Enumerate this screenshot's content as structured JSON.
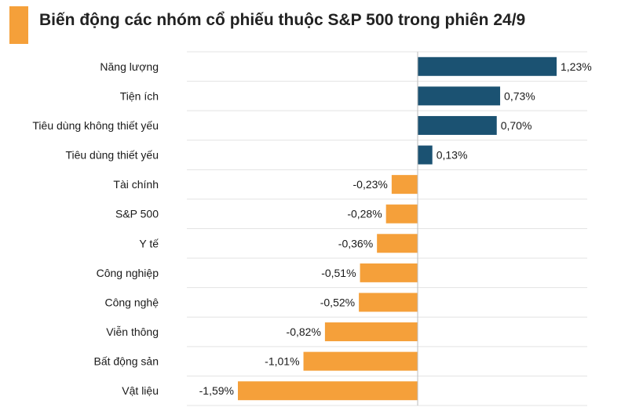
{
  "header": {
    "title": "Biến động các nhóm cổ phiếu thuộc S&P 500 trong phiên 24/9"
  },
  "colors": {
    "accent": "#F5A03A",
    "positive": "#1B5272",
    "negative": "#F5A03A",
    "grid": "#E3E3E3",
    "zero_axis": "#BDBDBD"
  },
  "chart_data": {
    "type": "bar",
    "orientation": "horizontal",
    "title": "Biến động các nhóm cổ phiếu thuộc S&P 500 trong phiên 24/9",
    "xlabel": "",
    "ylabel": "",
    "unit": "%",
    "grid": true,
    "categories": [
      "Năng lượng",
      "Tiện ích",
      "Tiêu dùng không thiết yếu",
      "Tiêu dùng thiết yếu",
      "Tài chính",
      "S&P 500",
      "Y tế",
      "Công nghiệp",
      "Công nghệ",
      "Viễn thông",
      "Bất động sản",
      "Vật liệu"
    ],
    "values": [
      1.23,
      0.73,
      0.7,
      0.13,
      -0.23,
      -0.28,
      -0.36,
      -0.51,
      -0.52,
      -0.82,
      -1.01,
      -1.59
    ],
    "value_labels": [
      "1,23%",
      "0,73%",
      "0,70%",
      "0,13%",
      "-0,23%",
      "-0,28%",
      "-0,36%",
      "-0,51%",
      "-0,52%",
      "-0,82%",
      "-1,01%",
      "-1,59%"
    ],
    "xlim": [
      -1.59,
      1.23
    ]
  }
}
